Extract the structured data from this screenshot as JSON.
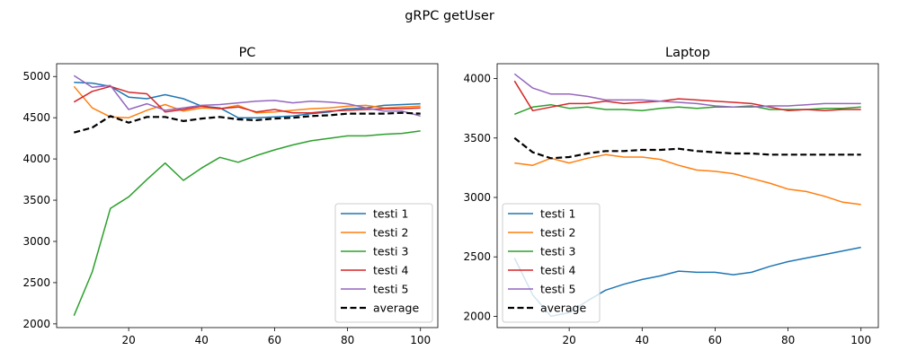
{
  "figure": {
    "title": "gRPC getUser"
  },
  "chart_data": [
    {
      "type": "line",
      "title": "PC",
      "xlabel": "",
      "ylabel": "",
      "xlim": [
        0.25,
        104.75
      ],
      "ylim": [
        1955,
        5155
      ],
      "xticks": [
        20,
        40,
        60,
        80,
        100
      ],
      "yticks": [
        2000,
        2500,
        3000,
        3500,
        4000,
        4500,
        5000
      ],
      "grid": false,
      "legend_position": "lower-right",
      "x": [
        5,
        10,
        15,
        20,
        25,
        30,
        35,
        40,
        45,
        50,
        55,
        60,
        65,
        70,
        75,
        80,
        85,
        90,
        95,
        100
      ],
      "series": [
        {
          "name": "testi 1",
          "color": "#1f77b4",
          "style": "solid",
          "values": [
            4930,
            4920,
            4880,
            4750,
            4730,
            4780,
            4730,
            4640,
            4620,
            4500,
            4500,
            4510,
            4520,
            4550,
            4570,
            4610,
            4620,
            4650,
            4660,
            4670
          ]
        },
        {
          "name": "testi 2",
          "color": "#ff7f0e",
          "style": "solid",
          "values": [
            4880,
            4620,
            4510,
            4500,
            4590,
            4660,
            4580,
            4620,
            4610,
            4650,
            4560,
            4570,
            4590,
            4610,
            4620,
            4640,
            4650,
            4620,
            4630,
            4640
          ]
        },
        {
          "name": "testi 3",
          "color": "#2ca02c",
          "style": "solid",
          "values": [
            2100,
            2630,
            3400,
            3540,
            3750,
            3950,
            3740,
            3890,
            4020,
            3960,
            4040,
            4110,
            4170,
            4220,
            4250,
            4280,
            4280,
            4300,
            4310,
            4340
          ]
        },
        {
          "name": "testi 4",
          "color": "#d62728",
          "style": "solid",
          "values": [
            4690,
            4820,
            4880,
            4810,
            4790,
            4570,
            4600,
            4640,
            4610,
            4630,
            4570,
            4600,
            4560,
            4560,
            4580,
            4590,
            4600,
            4610,
            4610,
            4620
          ]
        },
        {
          "name": "testi 5",
          "color": "#9467bd",
          "style": "solid",
          "values": [
            5010,
            4870,
            4890,
            4600,
            4670,
            4590,
            4620,
            4650,
            4660,
            4680,
            4700,
            4710,
            4680,
            4700,
            4690,
            4670,
            4620,
            4580,
            4580,
            4520
          ]
        },
        {
          "name": "average",
          "color": "#000000",
          "style": "dashed",
          "values": [
            4320,
            4380,
            4520,
            4440,
            4510,
            4510,
            4460,
            4490,
            4510,
            4480,
            4470,
            4490,
            4500,
            4520,
            4530,
            4550,
            4550,
            4550,
            4560,
            4550
          ]
        }
      ]
    },
    {
      "type": "line",
      "title": "Laptop",
      "xlabel": "",
      "ylabel": "",
      "xlim": [
        0.25,
        104.75
      ],
      "ylim": [
        1905,
        4125
      ],
      "xticks": [
        20,
        40,
        60,
        80,
        100
      ],
      "yticks": [
        2000,
        2500,
        3000,
        3500,
        4000
      ],
      "grid": false,
      "legend_position": "lower-left",
      "x": [
        5,
        10,
        15,
        20,
        25,
        30,
        35,
        40,
        45,
        50,
        55,
        60,
        65,
        70,
        75,
        80,
        85,
        90,
        95,
        100
      ],
      "series": [
        {
          "name": "testi 1",
          "color": "#1f77b4",
          "style": "solid",
          "values": [
            2490,
            2180,
            2000,
            2030,
            2130,
            2220,
            2270,
            2310,
            2340,
            2380,
            2370,
            2370,
            2350,
            2370,
            2420,
            2460,
            2490,
            2520,
            2550,
            2580
          ]
        },
        {
          "name": "testi 2",
          "color": "#ff7f0e",
          "style": "solid",
          "values": [
            3290,
            3270,
            3330,
            3290,
            3330,
            3360,
            3340,
            3340,
            3320,
            3270,
            3230,
            3220,
            3200,
            3160,
            3120,
            3070,
            3050,
            3010,
            2960,
            2940
          ]
        },
        {
          "name": "testi 3",
          "color": "#2ca02c",
          "style": "solid",
          "values": [
            3700,
            3760,
            3780,
            3750,
            3760,
            3740,
            3740,
            3730,
            3750,
            3760,
            3750,
            3760,
            3760,
            3770,
            3740,
            3740,
            3740,
            3750,
            3750,
            3760
          ]
        },
        {
          "name": "testi 4",
          "color": "#d62728",
          "style": "solid",
          "values": [
            3980,
            3730,
            3760,
            3790,
            3790,
            3810,
            3790,
            3800,
            3810,
            3830,
            3820,
            3810,
            3800,
            3790,
            3760,
            3730,
            3740,
            3730,
            3740,
            3740
          ]
        },
        {
          "name": "testi 5",
          "color": "#9467bd",
          "style": "solid",
          "values": [
            4040,
            3920,
            3870,
            3870,
            3850,
            3820,
            3820,
            3820,
            3810,
            3800,
            3790,
            3770,
            3760,
            3760,
            3770,
            3770,
            3780,
            3790,
            3790,
            3790
          ]
        },
        {
          "name": "average",
          "color": "#000000",
          "style": "dashed",
          "values": [
            3500,
            3380,
            3330,
            3340,
            3370,
            3390,
            3390,
            3400,
            3400,
            3410,
            3390,
            3380,
            3370,
            3370,
            3360,
            3360,
            3360,
            3360,
            3360,
            3360
          ]
        }
      ]
    }
  ]
}
